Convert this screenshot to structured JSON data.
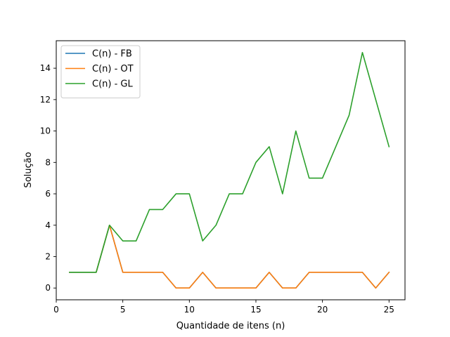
{
  "chart_data": {
    "type": "line",
    "xlabel": "Quantidade de itens (n)",
    "ylabel": "Solução",
    "xlim": [
      0,
      26.2
    ],
    "ylim": [
      -0.75,
      15.75
    ],
    "xticks": [
      0,
      5,
      10,
      15,
      20,
      25
    ],
    "yticks": [
      0,
      2,
      4,
      6,
      8,
      10,
      12,
      14
    ],
    "grid": false,
    "legend_position": "top-left",
    "x": [
      1,
      2,
      3,
      4,
      5,
      6,
      7,
      8,
      9,
      10,
      11,
      12,
      13,
      14,
      15,
      16,
      17,
      18,
      19,
      20,
      21,
      22,
      23,
      24,
      25
    ],
    "series": [
      {
        "name": "C(n) - FB",
        "color": "#1f77b4",
        "values": [
          1,
          1,
          1,
          4,
          1,
          1,
          1,
          1,
          0,
          0,
          1,
          0,
          0,
          0,
          0,
          1,
          0,
          0,
          1,
          1,
          1,
          1,
          1,
          0,
          1
        ]
      },
      {
        "name": "C(n) - OT",
        "color": "#ff7f0e",
        "values": [
          1,
          1,
          1,
          4,
          1,
          1,
          1,
          1,
          0,
          0,
          1,
          0,
          0,
          0,
          0,
          1,
          0,
          0,
          1,
          1,
          1,
          1,
          1,
          0,
          1
        ]
      },
      {
        "name": "C(n) - GL",
        "color": "#2ca02c",
        "values": [
          1,
          1,
          1,
          4,
          3,
          3,
          5,
          5,
          6,
          6,
          3,
          4,
          6,
          6,
          8,
          9,
          6,
          10,
          7,
          7,
          9,
          11,
          15,
          12,
          9
        ]
      }
    ]
  }
}
